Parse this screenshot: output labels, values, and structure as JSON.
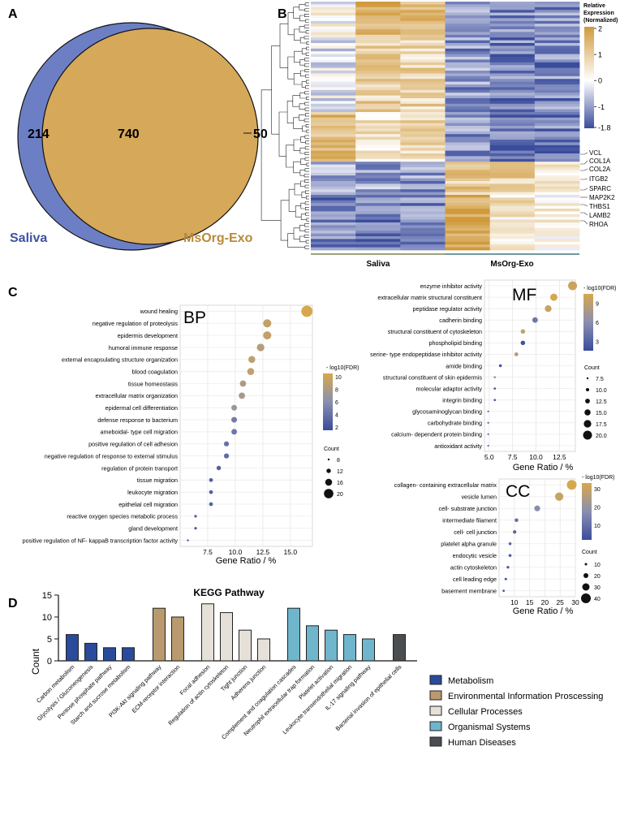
{
  "panels": {
    "a": "A",
    "b": "B",
    "c": "C",
    "d": "D"
  },
  "colors": {
    "saliva": "#6d7fc4",
    "exo": "#d6a85a",
    "low": "#3a4c9c",
    "mid": "#ffffff",
    "high": "#d09a3c",
    "metabolism": "#2a4b9b",
    "environmental": "#b89a6e",
    "cellular": "#e6e1d8",
    "organismal": "#6fb6cc",
    "human": "#4a4d52"
  },
  "chart_data": [
    {
      "type": "venn",
      "sets": [
        "Saliva",
        "MsOrg-Exo"
      ],
      "only_a": "214",
      "both": "740",
      "only_b": "50"
    },
    {
      "type": "heatmap",
      "legend_title": [
        "Relative",
        "Expression",
        "(Normalized)"
      ],
      "legend_ticks": [
        "2",
        "1",
        "0",
        "-1",
        "-1.8"
      ],
      "legend_values": [
        2,
        1,
        0,
        -1,
        -1.8
      ],
      "groups": [
        "Saliva",
        "MsOrg-Exo"
      ],
      "columns": 6,
      "rows": 90,
      "value_range": [
        -1.8,
        2
      ],
      "gene_labels": [
        "VCL",
        "COL1A",
        "COL2A",
        "ITGB2",
        "SPARC",
        "MAP2K2",
        "THBS1",
        "LAMB2",
        "RHOA"
      ]
    },
    {
      "type": "scatter",
      "title": "BP",
      "xlabel": "Gene Ratio / %",
      "xlim": [
        5,
        17
      ],
      "xticks": [
        "7.5",
        "10.0",
        "12.5",
        "15.0"
      ],
      "colorbar_title": "- log10(FDR)",
      "colorbar_range": [
        1.5,
        10.5
      ],
      "colorbar_ticks": [
        "10",
        "8",
        "6",
        "4",
        "2"
      ],
      "size_title": "Count",
      "size_ticks": [
        "8",
        "12",
        "16",
        "20"
      ],
      "terms": [
        "wound healing",
        "negative regulation of proteolysis",
        "epidermis development",
        "humoral immune response",
        "external encapsulating structure organization",
        "blood coagulation",
        "tissue homeostasis",
        "extracellular matrix organization",
        "epidermal cell differentiation",
        "defense response to bacterium",
        "ameboidal- type cell migration",
        "positive regulation of cell adhesion",
        "negative regulation of response to external stimulus",
        "regulation of protein transport",
        "tissue migration",
        "leukocyte migration",
        "epithelial cell migration",
        "reactive oxygen species metabolic process",
        "gland development",
        "positive regulation of NF- kappaB transcription factor activity"
      ],
      "x": [
        16.5,
        12.9,
        12.9,
        12.3,
        11.5,
        11.4,
        10.7,
        10.6,
        9.9,
        9.9,
        9.9,
        9.2,
        9.2,
        8.5,
        7.8,
        7.8,
        7.8,
        6.4,
        6.4,
        5.7
      ],
      "color": [
        10.5,
        9.3,
        9.3,
        8.5,
        9.0,
        9.2,
        8.0,
        7.8,
        7.2,
        4.6,
        4.4,
        4.0,
        3.7,
        3.0,
        2.8,
        2.9,
        2.9,
        2.4,
        2.3,
        2.0
      ],
      "size": [
        23,
        18,
        18,
        17,
        16,
        16,
        15,
        15,
        14,
        14,
        14,
        13,
        13,
        12,
        11,
        11,
        11,
        9,
        9,
        8
      ]
    },
    {
      "type": "scatter",
      "title": "MF",
      "xlabel": "Gene Ratio / %",
      "xlim": [
        4.5,
        14.2
      ],
      "xticks": [
        "5.0",
        "7.5",
        "10.0",
        "12.5"
      ],
      "colorbar_title": "- log10(FDR)",
      "colorbar_range": [
        1.5,
        10.5
      ],
      "colorbar_ticks": [
        "9",
        "6",
        "3"
      ],
      "size_title": "Count",
      "size_ticks": [
        "7.5",
        "10.0",
        "12.5",
        "15.0",
        "17.5",
        "20.0"
      ],
      "terms": [
        "enzyme inhibitor activity",
        "extracellular matrix structural constituent",
        "peptidase regulator activity",
        "cadherin binding",
        "structural constituent of cytoskeleton",
        "phospholipid binding",
        "serine- type endopeptidase inhibitor activity",
        "amide binding",
        "structural constituent of skin epidermis",
        "molecular adaptor activity",
        "integrin binding",
        "glycosaminoglycan binding",
        "carbohydrate binding",
        "calcium- dependent protein binding",
        "antioxidant activity"
      ],
      "x": [
        13.9,
        11.9,
        11.3,
        9.9,
        8.6,
        8.6,
        7.9,
        6.2,
        5.6,
        5.6,
        5.6,
        4.9,
        4.9,
        4.9,
        4.9
      ],
      "color": [
        9.8,
        10.5,
        9.6,
        4.5,
        9.2,
        1.8,
        8.6,
        1.8,
        7.5,
        2.3,
        2.3,
        2.1,
        2.1,
        2.0,
        2.0
      ],
      "size": [
        20,
        17,
        16,
        14,
        12,
        12,
        11,
        9,
        8,
        8,
        8,
        7,
        7,
        7,
        7
      ]
    },
    {
      "type": "scatter",
      "title": "CC",
      "xlabel": "Gene Ratio / %",
      "xlim": [
        5,
        30
      ],
      "xticks": [
        "10",
        "15",
        "20",
        "25",
        "30"
      ],
      "colorbar_title": "- log10(FDR)",
      "colorbar_range": [
        2,
        33
      ],
      "colorbar_ticks": [
        "30",
        "20",
        "10"
      ],
      "size_title": "Count",
      "size_ticks": [
        "10",
        "20",
        "30",
        "40"
      ],
      "terms": [
        "collagen- containing extracellular matrix",
        "vesicle lumen",
        "cell- substrate junction",
        "intermediate filament",
        "cell- cell junction",
        "platelet alpha granule",
        "endocytic vesicle",
        "actin cytoskeleton",
        "cell leading edge",
        "basement membrane"
      ],
      "x": [
        28.8,
        24.7,
        17.5,
        10.7,
        10.1,
        8.6,
        8.6,
        7.9,
        7.2,
        6.5
      ],
      "color": [
        33,
        30,
        17,
        10,
        7,
        8,
        6,
        5,
        4,
        3
      ],
      "size": [
        40,
        34,
        24,
        15,
        14,
        12,
        12,
        11,
        10,
        9
      ]
    },
    {
      "type": "bar",
      "title": "KEGG Pathway",
      "ylabel": "Count",
      "ylim": [
        0,
        15
      ],
      "yticks": [
        "0",
        "5",
        "10",
        "15"
      ],
      "categories": [
        "Carbon metabolism",
        "Glycolysis / Gluconeogenesis",
        "Pentose phosphate pathway",
        "Starch and sucrose metabolism",
        "PI3K-Akt signaling pathway",
        "ECM-receptor interaction",
        "Focal adhesion",
        "Regulation of actin cytoskeleton",
        "Tight junction",
        "Adherens junction",
        "Complement and coagulation cascades",
        "Neutrophil extracellular trap formation",
        "Platelet activation",
        "Leukocyte transendothelial migration",
        "IL-17 signaling pathway",
        "Bacterial invasion of epithelial cells"
      ],
      "values": [
        6,
        4,
        3,
        3,
        12,
        10,
        13,
        11,
        7,
        5,
        12,
        8,
        7,
        6,
        5,
        6
      ],
      "groups": [
        "metabolism",
        "metabolism",
        "metabolism",
        "metabolism",
        "environmental",
        "environmental",
        "cellular",
        "cellular",
        "cellular",
        "cellular",
        "organismal",
        "organismal",
        "organismal",
        "organismal",
        "organismal",
        "human"
      ],
      "legend": [
        {
          "key": "metabolism",
          "label": "Metabolism"
        },
        {
          "key": "environmental",
          "label": "Environmental Information Proscessing"
        },
        {
          "key": "cellular",
          "label": "Cellular Processes"
        },
        {
          "key": "organismal",
          "label": "Organismal Systems"
        },
        {
          "key": "human",
          "label": "Human Diseases"
        }
      ]
    }
  ]
}
